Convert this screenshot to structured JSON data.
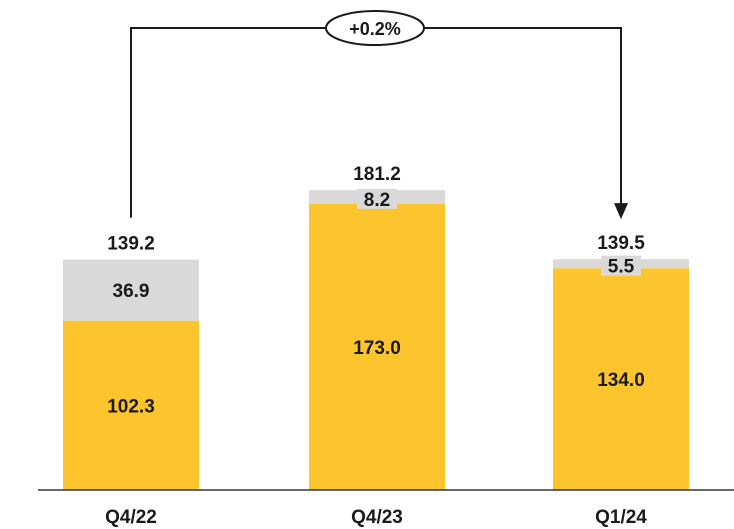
{
  "chart_data": {
    "type": "bar",
    "stacked": true,
    "categories": [
      "Q4/22",
      "Q4/23",
      "Q1/24"
    ],
    "series": [
      {
        "values": [
          102.3,
          173.0,
          134.0
        ],
        "labels": [
          "102.3",
          "173.0",
          "134.0"
        ],
        "color": "#FDC52D"
      },
      {
        "values": [
          36.9,
          8.2,
          5.5
        ],
        "labels": [
          "36.9",
          "8.2",
          "5.5"
        ],
        "color": "#D9D9D9"
      }
    ],
    "totals": [
      "139.2",
      "181.2",
      "139.5"
    ],
    "total_values": [
      139.2,
      181.2,
      139.5
    ],
    "annotation": {
      "text": "+0.2%",
      "from": "Q4/22",
      "to": "Q1/24"
    },
    "ylim": [
      0,
      200
    ],
    "grid": false,
    "legend": "none"
  }
}
